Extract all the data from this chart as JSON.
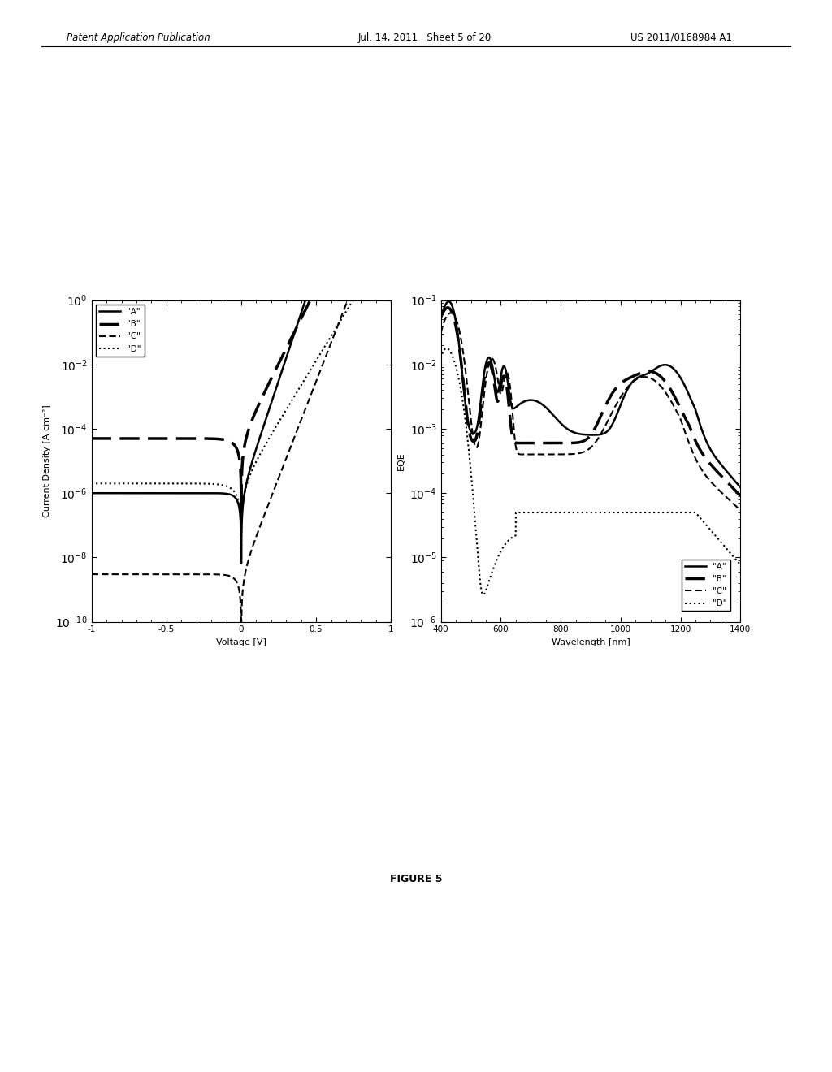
{
  "header_left": "Patent Application Publication",
  "header_mid": "Jul. 14, 2011   Sheet 5 of 20",
  "header_right": "US 2011/0168984 A1",
  "figure_label": "FIGURE 5",
  "left_plot": {
    "xlabel": "Voltage [V]",
    "ylabel": "Current Density [A cm⁻²]",
    "xlim": [
      -1,
      1
    ],
    "xticks": [
      -1,
      -0.5,
      0,
      0.5,
      1
    ],
    "legend_labels": [
      "\"A\"",
      "\"B\"",
      "\"C\"",
      "\"D\""
    ]
  },
  "right_plot": {
    "xlabel": "Wavelength [nm]",
    "ylabel": "EQE",
    "xlim": [
      400,
      1400
    ],
    "xticks": [
      400,
      600,
      800,
      1000,
      1200,
      1400
    ],
    "legend_labels": [
      "\"A\"",
      "\"B\"",
      "\"C\"",
      "\"D\""
    ]
  },
  "line_color": "#000000",
  "bg_color": "#ffffff",
  "plot_bg": "#ffffff"
}
